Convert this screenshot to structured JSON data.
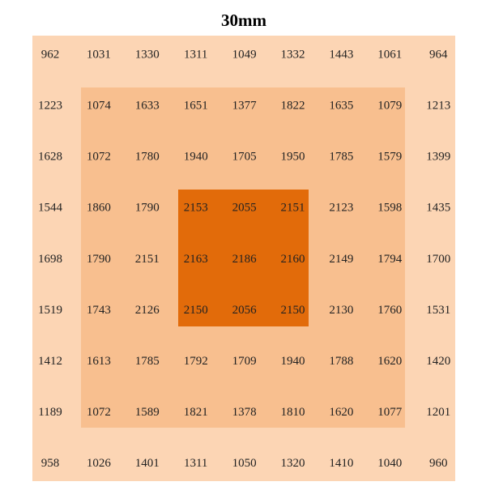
{
  "title": "30mm",
  "table": {
    "rows": [
      [
        962,
        1031,
        1330,
        1311,
        1049,
        1332,
        1443,
        1061,
        964
      ],
      [
        1223,
        1074,
        1633,
        1651,
        1377,
        1822,
        1635,
        1079,
        1213
      ],
      [
        1628,
        1072,
        1780,
        1940,
        1705,
        1950,
        1785,
        1579,
        1399
      ],
      [
        1544,
        1860,
        1790,
        2153,
        2055,
        2151,
        2123,
        1598,
        1435
      ],
      [
        1698,
        1790,
        2151,
        2163,
        2186,
        2160,
        2149,
        1794,
        1700
      ],
      [
        1519,
        1743,
        2126,
        2150,
        2056,
        2150,
        2130,
        1760,
        1531
      ],
      [
        1412,
        1613,
        1785,
        1792,
        1709,
        1940,
        1788,
        1620,
        1420
      ],
      [
        1189,
        1072,
        1589,
        1821,
        1378,
        1810,
        1620,
        1077,
        1201
      ],
      [
        958,
        1026,
        1401,
        1311,
        1050,
        1320,
        1410,
        1040,
        960
      ]
    ]
  }
}
